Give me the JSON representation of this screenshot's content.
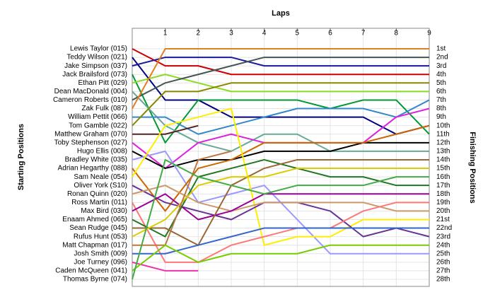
{
  "chart_data": {
    "type": "line",
    "title": "Laps",
    "y_label": "Starting Positions",
    "y2_label": "Finishing Positions",
    "x": [
      0,
      1,
      2,
      3,
      4,
      5,
      6,
      7,
      8,
      9
    ],
    "xlim": [
      0,
      9
    ],
    "xticks": [
      1,
      2,
      3,
      4,
      5,
      6,
      7,
      8,
      9
    ],
    "ylim": [
      1,
      28
    ],
    "y_inverted": true,
    "grid": true,
    "yticks": [
      {
        "value": 1,
        "label": "1st"
      },
      {
        "value": 2,
        "label": "2nd"
      },
      {
        "value": 3,
        "label": "3rd"
      },
      {
        "value": 4,
        "label": "4th"
      },
      {
        "value": 5,
        "label": "5th"
      },
      {
        "value": 6,
        "label": "6th"
      },
      {
        "value": 7,
        "label": "7th"
      },
      {
        "value": 8,
        "label": "8th"
      },
      {
        "value": 9,
        "label": "9th"
      },
      {
        "value": 10,
        "label": "10th"
      },
      {
        "value": 11,
        "label": "11th"
      },
      {
        "value": 12,
        "label": "12th"
      },
      {
        "value": 13,
        "label": "13th"
      },
      {
        "value": 14,
        "label": "14th"
      },
      {
        "value": 15,
        "label": "15th"
      },
      {
        "value": 16,
        "label": "16th"
      },
      {
        "value": 17,
        "label": "17th"
      },
      {
        "value": 18,
        "label": "18th"
      },
      {
        "value": 19,
        "label": "19th"
      },
      {
        "value": 20,
        "label": "20th"
      },
      {
        "value": 21,
        "label": "21st"
      },
      {
        "value": 22,
        "label": "22nd"
      },
      {
        "value": 23,
        "label": "23rd"
      },
      {
        "value": 24,
        "label": "24th"
      },
      {
        "value": 25,
        "label": "25th"
      },
      {
        "value": 26,
        "label": "26th"
      },
      {
        "value": 27,
        "label": "27th"
      },
      {
        "value": 28,
        "label": "28th"
      }
    ],
    "series": [
      {
        "name": "Lewis Taylor (015)",
        "color": "#cc0000",
        "values": [
          1,
          3,
          3,
          4,
          4,
          4,
          4,
          4,
          4,
          4
        ]
      },
      {
        "name": "Teddy Wilson (021)",
        "color": "#000080",
        "values": [
          2,
          7,
          7,
          9,
          9,
          9,
          9,
          9,
          11,
          10
        ]
      },
      {
        "name": "Jake Simpson (037)",
        "color": "#1a1aa0",
        "values": [
          3,
          2,
          2,
          2,
          3,
          3,
          3,
          3,
          3,
          3
        ]
      },
      {
        "name": "Jack Brailsford (073)",
        "color": "#009933",
        "values": [
          4,
          12,
          7,
          7,
          7,
          7,
          8,
          7,
          7,
          11
        ]
      },
      {
        "name": "Ethan Pitt (029)",
        "color": "#88dd22",
        "values": [
          5,
          4,
          5,
          6,
          6,
          6,
          6,
          6,
          6,
          6
        ]
      },
      {
        "name": "Dean MacDonald (004)",
        "color": "#66aa99",
        "values": [
          6,
          10,
          12,
          13,
          11,
          11,
          13,
          13,
          13,
          13
        ]
      },
      {
        "name": "Cameron Roberts (010)",
        "color": "#445555",
        "values": [
          7,
          5,
          4,
          3,
          2,
          2,
          2,
          2,
          2,
          2
        ]
      },
      {
        "name": "Zak Fulk (087)",
        "color": "#e08020",
        "values": [
          8,
          1,
          1,
          1,
          1,
          1,
          1,
          1,
          1,
          1
        ]
      },
      {
        "name": "William Pettit (066)",
        "color": "#3388cc",
        "values": [
          9,
          9,
          11,
          10,
          9,
          8,
          8,
          8,
          9,
          7
        ]
      },
      {
        "name": "Tom Gamble (022)",
        "color": "#888800",
        "values": [
          10,
          6,
          6,
          5,
          5,
          5,
          5,
          5,
          5,
          5
        ]
      },
      {
        "name": "Matthew Graham (070)",
        "color": "#552222",
        "values": [
          11,
          11,
          10,
          null,
          null,
          null,
          null,
          null,
          null,
          null
        ]
      },
      {
        "name": "Toby Stephenson (027)",
        "color": "#dd22dd",
        "values": [
          12,
          15,
          12,
          11,
          12,
          12,
          12,
          12,
          9,
          8
        ]
      },
      {
        "name": "Hugo Ellis (008)",
        "color": "#000000",
        "values": [
          13,
          15,
          14,
          14,
          13,
          13,
          13,
          12,
          12,
          12
        ]
      },
      {
        "name": "Bradley White (035)",
        "color": "#9999ff",
        "values": [
          14,
          13,
          19,
          18,
          17,
          21,
          25,
          25,
          25,
          25
        ]
      },
      {
        "name": "Adrian Hegarthy (088)",
        "color": "#cc6600",
        "values": [
          15,
          20,
          15,
          14,
          12,
          12,
          12,
          12,
          11,
          10
        ]
      },
      {
        "name": "Sam Neale (054)",
        "color": "#ffee00",
        "values": [
          16,
          10,
          9,
          8,
          24,
          23,
          23,
          21,
          21,
          21
        ]
      },
      {
        "name": "Oliver York (S10)",
        "color": "#663399",
        "values": [
          17,
          19,
          20,
          21,
          19,
          19,
          20,
          23,
          22,
          23
        ]
      },
      {
        "name": "Ronan Quinn (020)",
        "color": "#cc9966",
        "values": [
          18,
          17,
          19,
          20,
          19,
          19,
          19,
          19,
          20,
          20
        ]
      },
      {
        "name": "Ross Martin (011)",
        "color": "#ff7777",
        "values": [
          19,
          26,
          26,
          24,
          23,
          22,
          22,
          20,
          19,
          19
        ]
      },
      {
        "name": "Max Bird (030)",
        "color": "#990099",
        "values": [
          20,
          18,
          21,
          20,
          18,
          18,
          18,
          18,
          18,
          18
        ]
      },
      {
        "name": "Enaam Ahmed (065)",
        "color": "#227722",
        "values": [
          21,
          23,
          16,
          15,
          14,
          15,
          16,
          16,
          17,
          17
        ]
      },
      {
        "name": "Sean Rudge (045)",
        "color": "#996633",
        "values": [
          22,
          22,
          24,
          17,
          15,
          14,
          14,
          14,
          14,
          14
        ]
      },
      {
        "name": "Rufus Hunt (053)",
        "color": "#ddcc00",
        "values": [
          23,
          21,
          17,
          16,
          16,
          15,
          15,
          15,
          15,
          15
        ]
      },
      {
        "name": "Matt Chapman (017)",
        "color": "#bb7744",
        "values": [
          24,
          24,
          14,
          13,
          null,
          null,
          null,
          null,
          null,
          null
        ]
      },
      {
        "name": "Josh Smith (009)",
        "color": "#3366cc",
        "values": [
          25,
          25,
          24,
          23,
          22,
          22,
          22,
          22,
          22,
          22
        ]
      },
      {
        "name": "Joe Turney (096)",
        "color": "#ee33aa",
        "values": [
          26,
          27,
          27,
          null,
          null,
          null,
          null,
          null,
          null,
          null
        ]
      },
      {
        "name": "Caden McQueen (041)",
        "color": "#77cc00",
        "values": [
          27,
          24,
          26,
          25,
          25,
          25,
          24,
          24,
          24,
          24
        ]
      },
      {
        "name": "Thomas Byrne (074)",
        "color": "#44aa44",
        "values": [
          28,
          14,
          16,
          17,
          18,
          17,
          17,
          17,
          16,
          16
        ]
      }
    ]
  }
}
